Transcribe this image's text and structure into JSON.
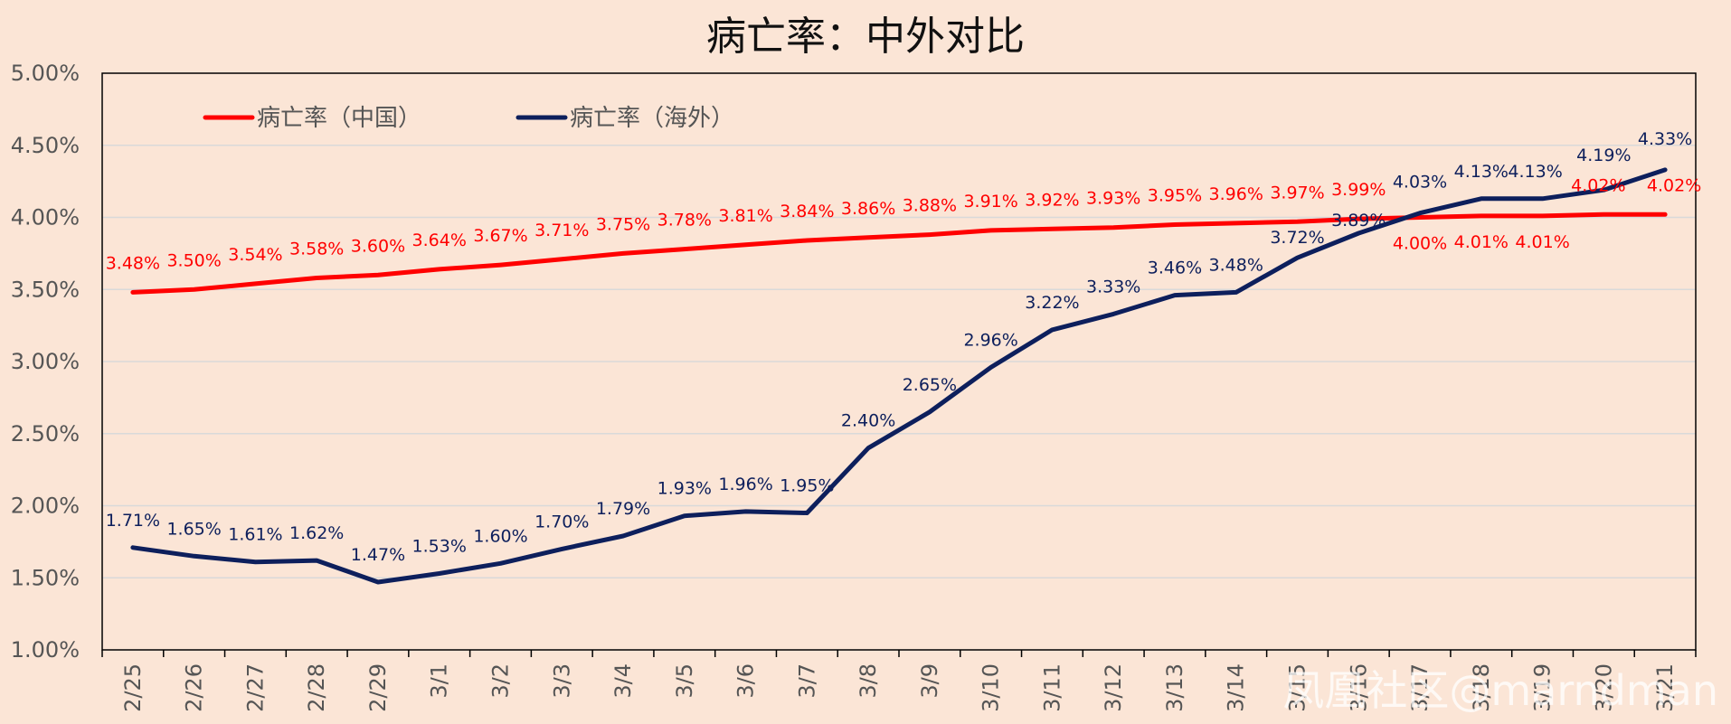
{
  "chart_data": {
    "type": "line",
    "title": "病亡率：中外对比",
    "xlabel": "",
    "ylabel": "",
    "ylim": [
      0.01,
      0.05
    ],
    "yticks": [
      "1.00%",
      "1.50%",
      "2.00%",
      "2.50%",
      "3.00%",
      "3.50%",
      "4.00%",
      "4.50%",
      "5.00%"
    ],
    "ytick_values": [
      0.01,
      0.015,
      0.02,
      0.025,
      0.03,
      0.035,
      0.04,
      0.045,
      0.05
    ],
    "grid": true,
    "legend_position": "top-left",
    "categories": [
      "2/25",
      "2/26",
      "2/27",
      "2/28",
      "2/29",
      "3/1",
      "3/2",
      "3/3",
      "3/4",
      "3/5",
      "3/6",
      "3/7",
      "3/8",
      "3/9",
      "3/10",
      "3/11",
      "3/12",
      "3/13",
      "3/14",
      "3/15",
      "3/16",
      "3/17",
      "3/18",
      "3/19",
      "3/20",
      "3/21"
    ],
    "series": [
      {
        "name": "病亡率（中国）",
        "color": "#FF0000",
        "values": [
          0.0348,
          0.035,
          0.0354,
          0.0358,
          0.036,
          0.0364,
          0.0367,
          0.0371,
          0.0375,
          0.0378,
          0.0381,
          0.0384,
          0.0386,
          0.0388,
          0.0391,
          0.0392,
          0.0393,
          0.0395,
          0.0396,
          0.0397,
          0.0399,
          0.04,
          0.0401,
          0.0401,
          0.0402,
          0.0402
        ],
        "labels": [
          "3.48%",
          "3.50%",
          "3.54%",
          "3.58%",
          "3.60%",
          "3.64%",
          "3.67%",
          "3.71%",
          "3.75%",
          "3.78%",
          "3.81%",
          "3.84%",
          "3.86%",
          "3.88%",
          "3.91%",
          "3.92%",
          "3.93%",
          "3.95%",
          "3.96%",
          "3.97%",
          "3.99%",
          "4.00%",
          "4.01%",
          "4.01%",
          "4.02%",
          "4.02%"
        ]
      },
      {
        "name": "病亡率（海外）",
        "color": "#0D1F5C",
        "values": [
          0.0171,
          0.0165,
          0.0161,
          0.0162,
          0.0147,
          0.0153,
          0.016,
          0.017,
          0.0179,
          0.0193,
          0.0196,
          0.0195,
          0.024,
          0.0265,
          0.0296,
          0.0322,
          0.0333,
          0.0346,
          0.0348,
          0.0372,
          0.0389,
          0.0403,
          0.0413,
          0.0413,
          0.0419,
          0.0433
        ],
        "labels": [
          "1.71%",
          "1.65%",
          "1.61%",
          "1.62%",
          "1.47%",
          "1.53%",
          "1.60%",
          "1.70%",
          "1.79%",
          "1.93%",
          "1.96%",
          "1.95%",
          "2.40%",
          "2.65%",
          "2.96%",
          "3.22%",
          "3.33%",
          "3.46%",
          "3.48%",
          "3.72%",
          "3.89%",
          "4.03%",
          "4.13%",
          "4.13%",
          "4.19%",
          "4.33%"
        ]
      }
    ],
    "watermark": "凤凰社区@marndman"
  }
}
